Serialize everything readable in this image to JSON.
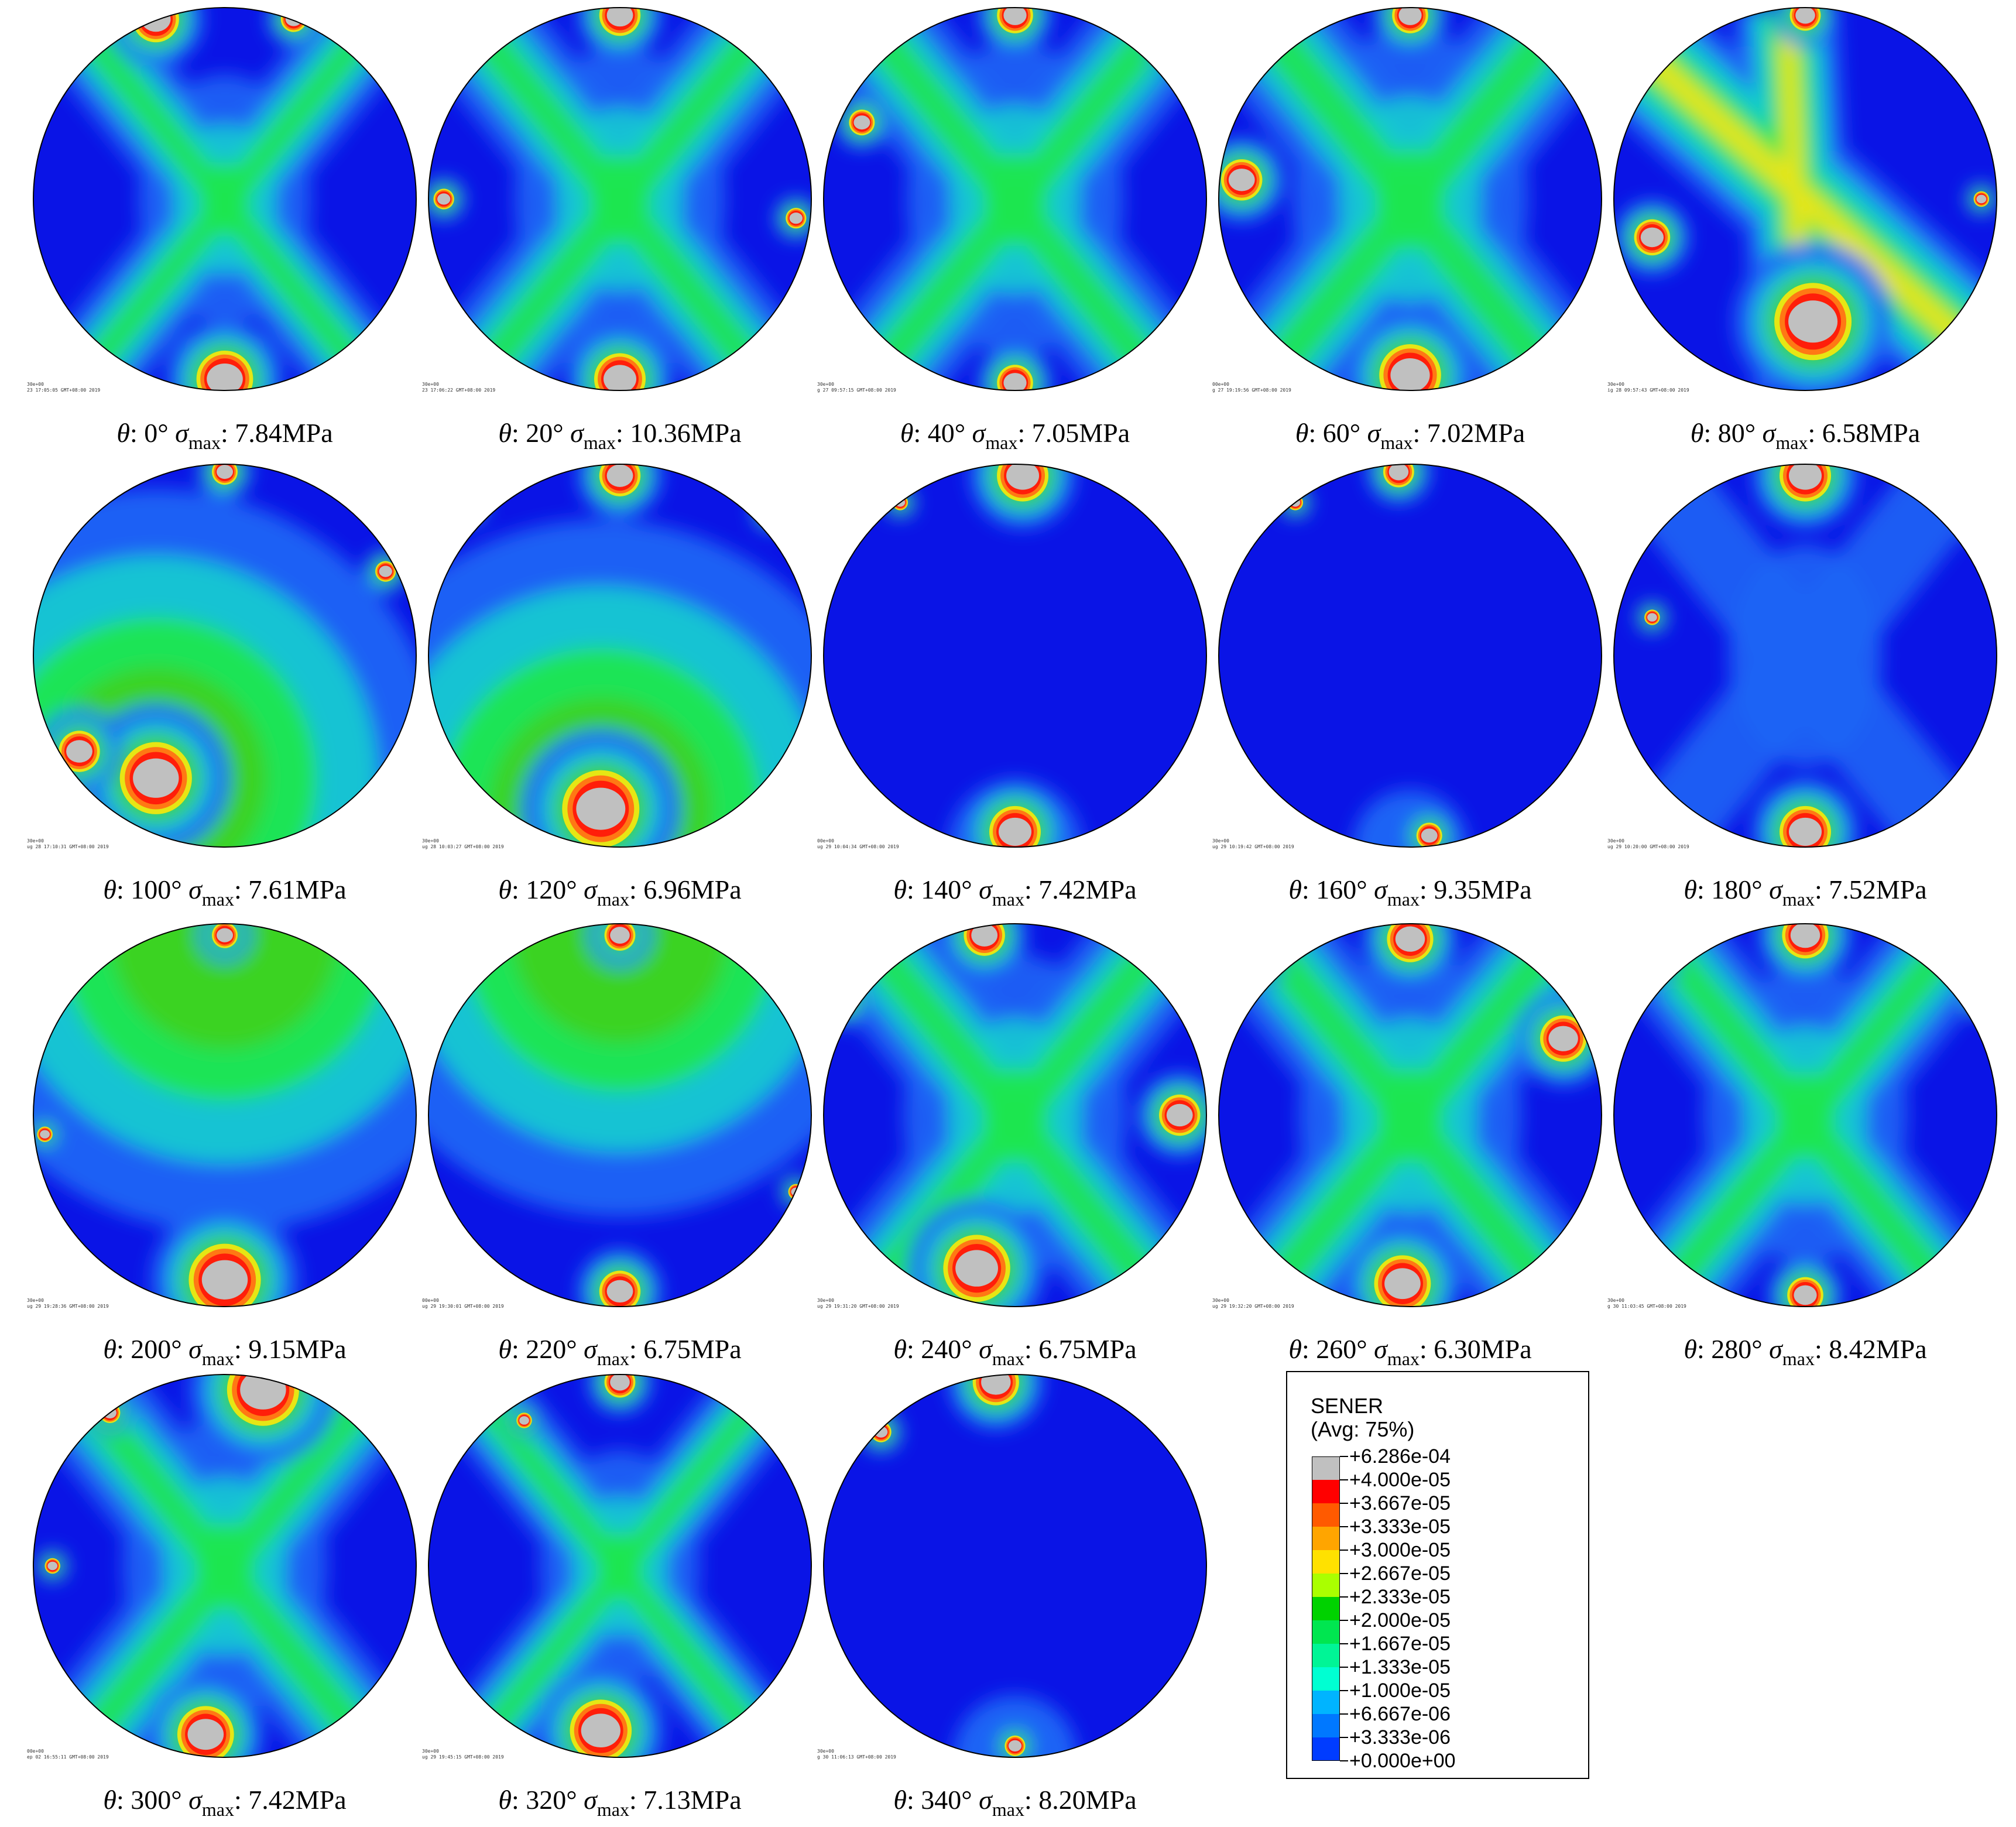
{
  "panels": [
    {
      "theta_deg": "0°",
      "stress": "7.84MPa",
      "stamp": [
        "30e+00",
        "23 17:05:05 GMT+08:00 2019"
      ]
    },
    {
      "theta_deg": "20°",
      "stress": "10.36MPa",
      "stamp": [
        "30e+00",
        "23 17:06:22 GMT+08:00 2019"
      ]
    },
    {
      "theta_deg": "40°",
      "stress": "7.05MPa",
      "stamp": [
        "30e+00",
        "g 27 09:57:15 GMT+08:00 2019"
      ]
    },
    {
      "theta_deg": "60°",
      "stress": "7.02MPa",
      "stamp": [
        "00e+00",
        "g 27 19:19:56 GMT+08:00 2019"
      ]
    },
    {
      "theta_deg": "80°",
      "stress": "6.58MPa",
      "stamp": [
        "30e+00",
        "ig 28 09:57:43 GMT+08:00 2019"
      ]
    },
    {
      "theta_deg": "100°",
      "stress": "7.61MPa",
      "stamp": [
        "30e+00",
        "ug 28 17:10:31 GMT+08:00 2019"
      ]
    },
    {
      "theta_deg": "120°",
      "stress": "6.96MPa",
      "stamp": [
        "30e+00",
        "ug 28 10:03:27 GMT+08:00 2019"
      ]
    },
    {
      "theta_deg": "140°",
      "stress": "7.42MPa",
      "stamp": [
        "00e+00",
        "ug 29 10:04:34 GMT+08:00 2019"
      ]
    },
    {
      "theta_deg": "160°",
      "stress": "9.35MPa",
      "stamp": [
        "30e+00",
        "ug 29 10:19:42 GMT+08:00 2019"
      ]
    },
    {
      "theta_deg": "180°",
      "stress": "7.52MPa",
      "stamp": [
        "30e+00",
        "ug 29 10:20:00 GMT+08:00 2019"
      ]
    },
    {
      "theta_deg": "200°",
      "stress": "9.15MPa",
      "stamp": [
        "30e+00",
        "ug 29 19:28:36 GMT+08:00 2019"
      ]
    },
    {
      "theta_deg": "220°",
      "stress": "6.75MPa",
      "stamp": [
        "00e+00",
        "ug 29 19:30:01 GMT+08:00 2019"
      ]
    },
    {
      "theta_deg": "240°",
      "stress": "6.75MPa",
      "stamp": [
        "30e+00",
        "ug 29 19:31:20 GMT+08:00 2019"
      ]
    },
    {
      "theta_deg": "260°",
      "stress": "6.30MPa",
      "stamp": [
        "30e+00",
        "ug 29 19:32:20 GMT+08:00 2019"
      ]
    },
    {
      "theta_deg": "280°",
      "stress": "8.42MPa",
      "stamp": [
        "30e+00",
        "g 30 11:03:45 GMT+08:00 2019"
      ]
    },
    {
      "theta_deg": "300°",
      "stress": "7.42MPa",
      "stamp": [
        "00e+00",
        "ep 02 16:55:11 GMT+08:00 2019"
      ]
    },
    {
      "theta_deg": "320°",
      "stress": "7.13MPa",
      "stamp": [
        "30e+00",
        "ug 29 19:45:15 GMT+08:00 2019"
      ]
    },
    {
      "theta_deg": "340°",
      "stress": "8.20MPa",
      "stamp": [
        "30e+00",
        "g 30 11:06:13 GMT+08:00 2019"
      ]
    }
  ],
  "caption_symbols": {
    "theta": "θ",
    "sigma": "σ",
    "sub": "max",
    "colon": ":"
  },
  "legend": {
    "title": "SENER",
    "subtitle": "(Avg: 75%)",
    "ticks": [
      "+6.286e-04",
      "+4.000e-05",
      "+3.667e-05",
      "+3.333e-05",
      "+3.000e-05",
      "+2.667e-05",
      "+2.333e-05",
      "+2.000e-05",
      "+1.667e-05",
      "+1.333e-05",
      "+1.000e-05",
      "+6.667e-06",
      "+3.333e-06",
      "+0.000e+00"
    ],
    "band_colors": [
      "#c0c0c0",
      "#ff0000",
      "#ff5a00",
      "#ffa500",
      "#ffe100",
      "#aaff00",
      "#00d200",
      "#00e650",
      "#00f596",
      "#00ffd2",
      "#00b4ff",
      "#0078ff",
      "#003cff"
    ]
  },
  "field_colors": {
    "base": "#0a14e6",
    "low": "#1e64f5",
    "mid": "#14c8d2",
    "midhigh": "#1ee650",
    "green": "#3cd21e",
    "yellow": "#e6e614",
    "orange": "#ff7814",
    "red": "#ff1e0a",
    "max": "#c0c0c0"
  }
}
